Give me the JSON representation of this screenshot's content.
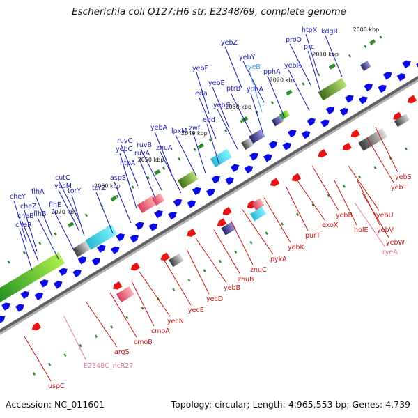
{
  "title": "Escherichia coli O127:H6 str. E2348/69, complete genome",
  "footer": {
    "accession": "Accession: NC_011601",
    "summary": "Topology: circular; Length: 4,965,553 bp; Genes: 4,739"
  },
  "colors": {
    "backbone": "#606060",
    "forward_label": "#1a1aa8",
    "reverse_label": "#c81414",
    "rna_label": "#e07aa8",
    "rna_label_forward": "#3aa0e0",
    "forward_gene": "#0a0ae6",
    "reverse_gene": "#e61414",
    "kbp_mark": "#2e8b2e"
  },
  "kbp_ticks": [
    "2000 kbp",
    "2010 kbp",
    "2020 kbp",
    "2030 kbp",
    "2040 kbp",
    "2050 kbp",
    "2060 kbp",
    "2070 kbp"
  ],
  "forward_labels": [
    "htpX",
    "kdgR",
    "proQ",
    "prc",
    "yebZ",
    "yebY",
    "ryeB",
    "pphA",
    "yebR",
    "yebF",
    "yebE",
    "ptrB",
    "yobA",
    "eda",
    "yebG",
    "edd",
    "yebA",
    "lpxM",
    "zwf",
    "ruvC",
    "ruvB",
    "yebC",
    "ruvA",
    "znuA",
    "ntpA",
    "aspS",
    "cutC",
    "torY",
    "torZ",
    "yecM",
    "cheY",
    "flhA",
    "flhE",
    "cheZ",
    "cheB",
    "flhB",
    "cheR"
  ],
  "reverse_labels": [
    "yebS",
    "yebT",
    "yebU",
    "yebV",
    "yebW",
    "ryeA",
    "holE",
    "yobB",
    "exoX",
    "purT",
    "yebK",
    "pykA",
    "znuC",
    "znuB",
    "yebB",
    "yecD",
    "yecE",
    "yecN",
    "cmoA",
    "cmoB",
    "argS",
    "E2348C_ncR27",
    "uspC"
  ]
}
